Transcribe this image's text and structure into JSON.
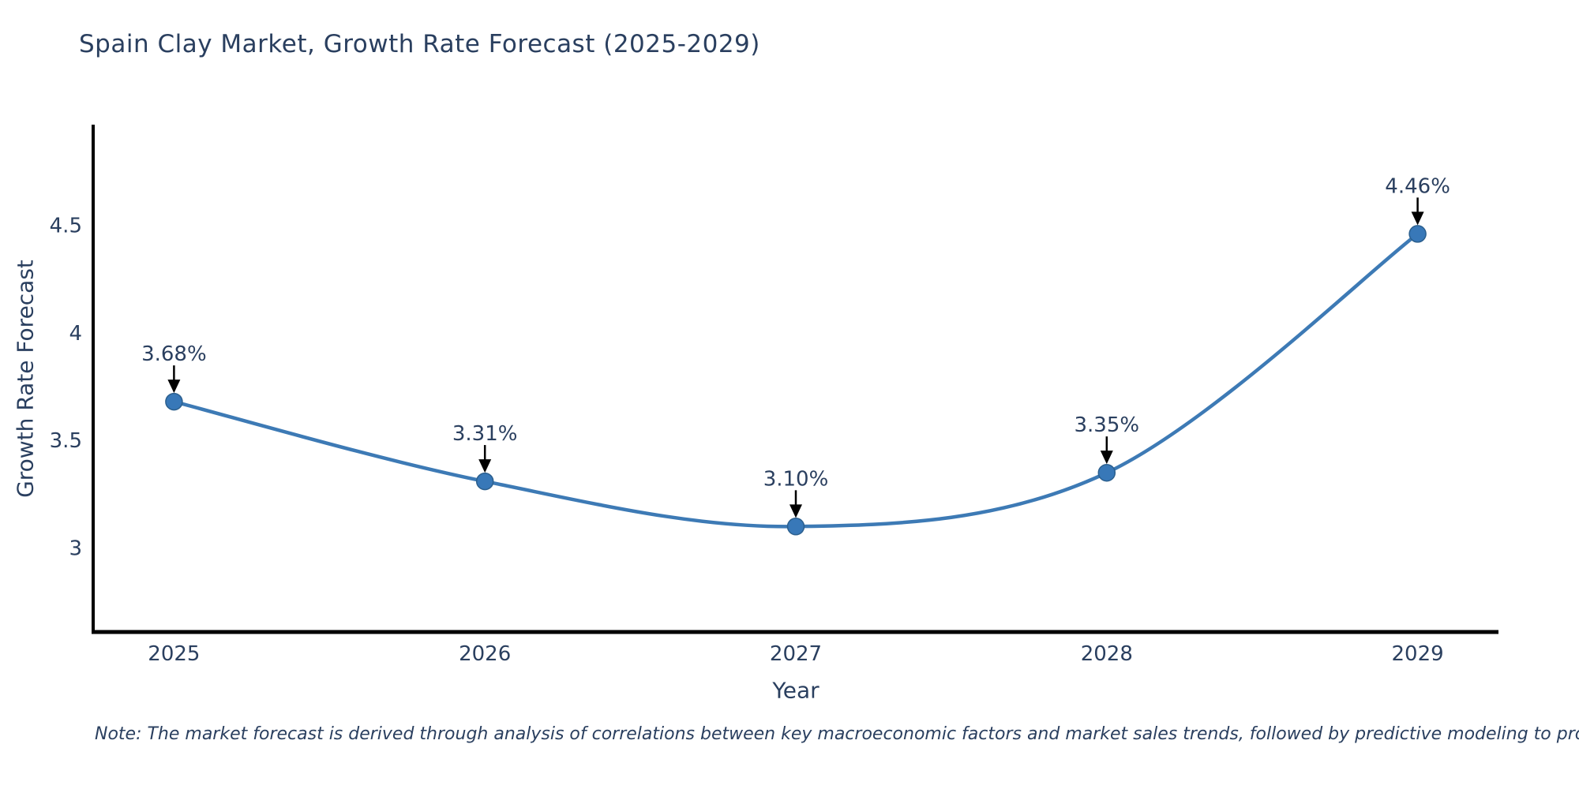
{
  "chart_data": {
    "type": "line",
    "title": "Spain Clay Market, Growth Rate Forecast (2025-2029)",
    "xlabel": "Year",
    "ylabel": "Growth Rate Forecast",
    "x": [
      2025,
      2026,
      2027,
      2028,
      2029
    ],
    "series": [
      {
        "name": "Growth Rate Forecast",
        "values": [
          3.68,
          3.31,
          3.1,
          3.35,
          4.46
        ]
      }
    ],
    "point_labels": [
      "3.68%",
      "3.31%",
      "3.10%",
      "3.35%",
      "4.46%"
    ],
    "x_tick_labels": [
      "2025",
      "2026",
      "2027",
      "2028",
      "2029"
    ],
    "y_ticks": [
      3,
      3.5,
      4,
      4.5
    ],
    "y_tick_labels": [
      "3",
      "3.5",
      "4",
      "4.5"
    ],
    "xlim": [
      2024.74,
      2029.26
    ],
    "ylim": [
      2.61,
      4.96
    ],
    "line_shape": "spline",
    "grid": false,
    "legend": "none",
    "colors": {
      "line": "#3d7ab5",
      "marker_fill": "#3878b8",
      "marker_edge": "#2b5f8e",
      "axis": "#000000",
      "text": "#2a3f5f",
      "arrow": "#000000"
    },
    "note": "Note: The market forecast is derived through analysis of correlations between key macroeconomic factors and market sales trends, followed by predictive modeling to project future sales"
  }
}
